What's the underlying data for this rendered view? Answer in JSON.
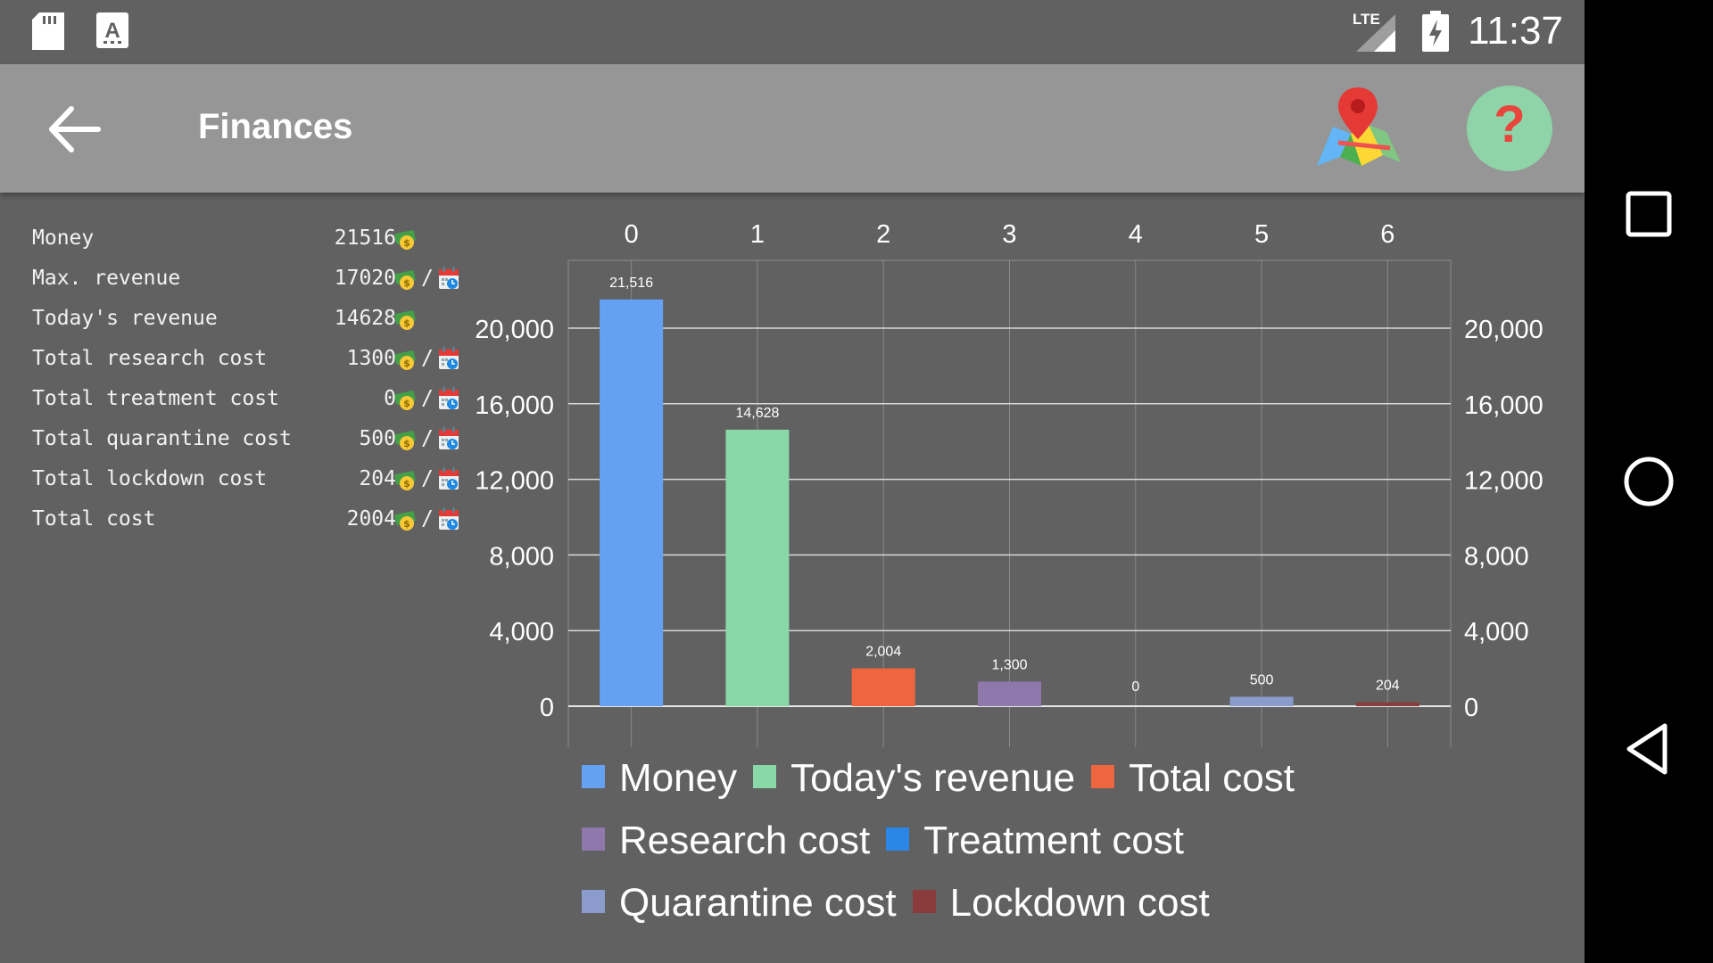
{
  "status_bar": {
    "time": "11:37",
    "network": "LTE"
  },
  "app_bar": {
    "title": "Finances",
    "back_icon": "arrow-left-icon",
    "map_icon": "map-pin-icon",
    "help_icon": "question-mark-icon",
    "help_glyph": "?"
  },
  "stats": [
    {
      "label": "Money",
      "value": "21516",
      "unit": "money"
    },
    {
      "label": "Max. revenue",
      "value": "17020",
      "unit": "money-per-day",
      "slash": "/"
    },
    {
      "label": "Today's revenue",
      "value": "14628",
      "unit": "money"
    },
    {
      "label": "Total research cost",
      "value": "1300",
      "unit": "money-per-day",
      "slash": "/"
    },
    {
      "label": "Total treatment cost",
      "value": "0",
      "unit": "money-per-day",
      "slash": "/"
    },
    {
      "label": "Total quarantine cost",
      "value": "500",
      "unit": "money-per-day",
      "slash": "/"
    },
    {
      "label": "Total lockdown cost",
      "value": "204",
      "unit": "money-per-day",
      "slash": "/"
    },
    {
      "label": "Total cost",
      "value": "2004",
      "unit": "money-per-day",
      "slash": "/"
    }
  ],
  "chart_data": {
    "type": "bar",
    "categories": [
      "0",
      "1",
      "2",
      "3",
      "4",
      "5",
      "6"
    ],
    "values": [
      21516,
      14628,
      2004,
      1300,
      0,
      500,
      204
    ],
    "value_labels": [
      "21,516",
      "14,628",
      "2,004",
      "1,300",
      "0",
      "500",
      "204"
    ],
    "colors": [
      "#64a1f2",
      "#88d8a8",
      "#ee6540",
      "#8f78ac",
      "#2b86e8",
      "#8b9ccc",
      "#8a3b3b"
    ],
    "series_names": [
      "Money",
      "Today's revenue",
      "Total cost",
      "Research cost",
      "Treatment cost",
      "Quarantine cost",
      "Lockdown cost"
    ],
    "ylim": [
      0,
      20000
    ],
    "yticks": [
      0,
      4000,
      8000,
      12000,
      16000,
      20000
    ],
    "ytick_labels": [
      "0",
      "4,000",
      "8,000",
      "12,000",
      "16,000",
      "20,000"
    ],
    "grid": true,
    "legend_position": "bottom"
  },
  "colors": {
    "background": "#616161",
    "app_bar": "#969696",
    "grid": "#d8d8d8",
    "help_button": "#8fd4a8"
  }
}
